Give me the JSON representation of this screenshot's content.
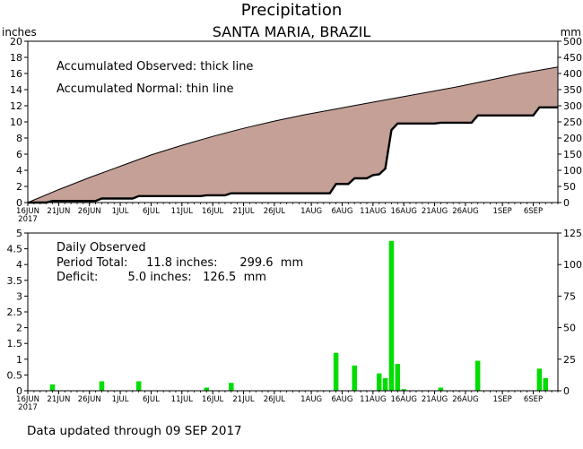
{
  "figure": {
    "title": "Precipitation",
    "subtitle": "SANTA MARIA, BRAZIL",
    "left_unit": "inches",
    "right_unit": "mm",
    "footer": "Data updated through 09 SEP 2017"
  },
  "chart_data": [
    {
      "type": "area",
      "notes": [
        "Accumulated Observed: thick line",
        "Accumulated Normal: thin line"
      ],
      "xlabel": "",
      "ylabel": "inches",
      "ylim": [
        0,
        20
      ],
      "yticks": [
        "0",
        "2",
        "4",
        "6",
        "8",
        "10",
        "12",
        "14",
        "16",
        "18",
        "20"
      ],
      "y2label": "mm",
      "y2lim": [
        0,
        500
      ],
      "y2ticks": [
        "0",
        "50",
        "100",
        "150",
        "200",
        "250",
        "300",
        "350",
        "400",
        "450",
        "500"
      ],
      "xlim": [
        0,
        86
      ],
      "xticks": [
        {
          "day": 0,
          "label": "16JUN",
          "sublabel": "2017"
        },
        {
          "day": 5,
          "label": "21JUN"
        },
        {
          "day": 10,
          "label": "26JUN"
        },
        {
          "day": 15,
          "label": "1JUL"
        },
        {
          "day": 20,
          "label": "6JUL"
        },
        {
          "day": 25,
          "label": "11JUL"
        },
        {
          "day": 30,
          "label": "16JUL"
        },
        {
          "day": 35,
          "label": "21JUL"
        },
        {
          "day": 40,
          "label": "26JUL"
        },
        {
          "day": 46,
          "label": "1AUG"
        },
        {
          "day": 51,
          "label": "6AUG"
        },
        {
          "day": 56,
          "label": "11AUG"
        },
        {
          "day": 61,
          "label": "16AUG"
        },
        {
          "day": 66,
          "label": "21AUG"
        },
        {
          "day": 71,
          "label": "26AUG"
        },
        {
          "day": 77,
          "label": "1SEP"
        },
        {
          "day": 82,
          "label": "6SEP"
        }
      ],
      "series": [
        {
          "name": "Accumulated Normal",
          "style": "thin line, area below filled #c4a097",
          "color": "#c4a097",
          "x": [
            0,
            5,
            10,
            15,
            20,
            25,
            30,
            35,
            40,
            45,
            50,
            55,
            60,
            65,
            70,
            75,
            80,
            86
          ],
          "y": [
            0,
            1.6,
            3.1,
            4.5,
            5.9,
            7.1,
            8.2,
            9.2,
            10.1,
            10.9,
            11.6,
            12.3,
            13.0,
            13.7,
            14.4,
            15.2,
            16.0,
            16.8
          ]
        },
        {
          "name": "Accumulated Observed",
          "style": "thick line, area below filled white",
          "color": "#000000",
          "x": [
            0,
            3,
            4,
            11,
            12,
            17,
            18,
            28,
            29,
            32,
            33,
            49,
            50,
            52,
            53,
            55,
            56,
            57,
            58,
            59,
            60,
            61,
            62,
            66,
            67,
            72,
            73,
            82,
            83,
            86
          ],
          "y": [
            0,
            0,
            0.2,
            0.2,
            0.5,
            0.5,
            0.8,
            0.8,
            0.9,
            0.9,
            1.15,
            1.15,
            2.3,
            2.3,
            3.0,
            3.0,
            3.4,
            3.5,
            4.2,
            9.0,
            9.8,
            9.8,
            9.8,
            9.8,
            9.9,
            9.9,
            10.8,
            10.8,
            11.8,
            11.8
          ]
        }
      ]
    },
    {
      "type": "bar",
      "notes": [
        "Daily Observed",
        "Period Total:     11.8 inches:      299.6  mm",
        "Deficit:        5.0 inches:   126.5  mm"
      ],
      "xlabel": "",
      "ylabel": "inches",
      "ylim": [
        0,
        5
      ],
      "yticks": [
        "0",
        "0.5",
        "1",
        "1.5",
        "2",
        "2.5",
        "3",
        "3.5",
        "4",
        "4.5",
        "5"
      ],
      "y2label": "mm",
      "y2lim": [
        0,
        125
      ],
      "y2ticks": [
        "0",
        "25",
        "50",
        "75",
        "100",
        "125"
      ],
      "xlim": [
        0,
        86
      ],
      "bar_color": "#00dd00",
      "series": [
        {
          "name": "Daily Observed",
          "x": [
            4,
            12,
            18,
            29,
            33,
            50,
            53,
            57,
            58,
            59,
            60,
            61,
            67,
            73,
            83,
            84
          ],
          "values": [
            0.2,
            0.3,
            0.3,
            0.1,
            0.25,
            1.2,
            0.8,
            0.55,
            0.4,
            4.75,
            0.85,
            0.05,
            0.1,
            0.95,
            0.7,
            0.4
          ]
        }
      ]
    }
  ]
}
